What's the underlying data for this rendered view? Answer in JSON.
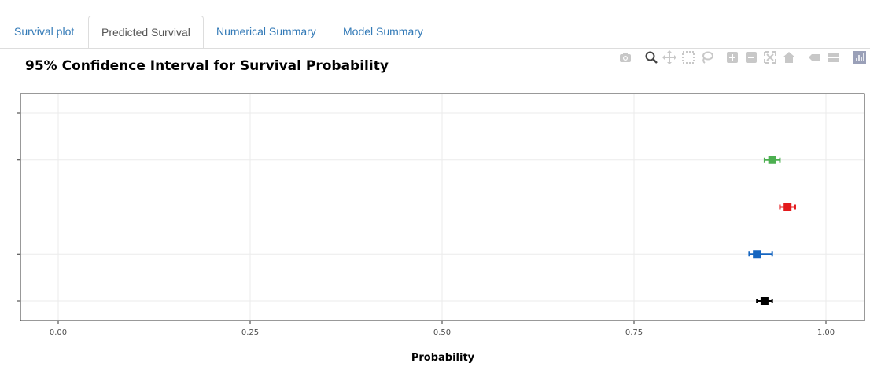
{
  "tabs": [
    {
      "label": "Survival plot",
      "active": false
    },
    {
      "label": "Predicted Survival",
      "active": true
    },
    {
      "label": "Numerical Summary",
      "active": false
    },
    {
      "label": "Model Summary",
      "active": false
    }
  ],
  "modebar": [
    "camera-icon",
    "zoom-icon",
    "pan-icon",
    "box-select-icon",
    "lasso-icon",
    "zoom-in-icon",
    "zoom-out-icon",
    "autoscale-icon",
    "reset-axes-icon",
    "hover-closest-icon",
    "hover-compare-icon",
    "plotly-logo-icon"
  ],
  "chart_data": {
    "type": "scatter",
    "title": "95% Confidence Interval for Survival Probability",
    "xlabel": "Probability",
    "ylabel": "",
    "xlim": [
      -0.1,
      1.03
    ],
    "x_ticks": [
      "0.00",
      "0.25",
      "0.50",
      "0.75",
      "1.00"
    ],
    "x_tick_values": [
      0,
      0.25,
      0.5,
      0.75,
      1.0
    ],
    "y_categories": 5,
    "grid": true,
    "series": [
      {
        "y_index": 1,
        "x": 0.92,
        "lower": 0.91,
        "upper": 0.93,
        "color": "#000000"
      },
      {
        "y_index": 2,
        "x": 0.91,
        "lower": 0.9,
        "upper": 0.93,
        "color": "#1565c0"
      },
      {
        "y_index": 3,
        "x": 0.95,
        "lower": 0.94,
        "upper": 0.96,
        "color": "#e31a1c"
      },
      {
        "y_index": 4,
        "x": 0.93,
        "lower": 0.92,
        "upper": 0.94,
        "color": "#4caf50"
      }
    ]
  }
}
